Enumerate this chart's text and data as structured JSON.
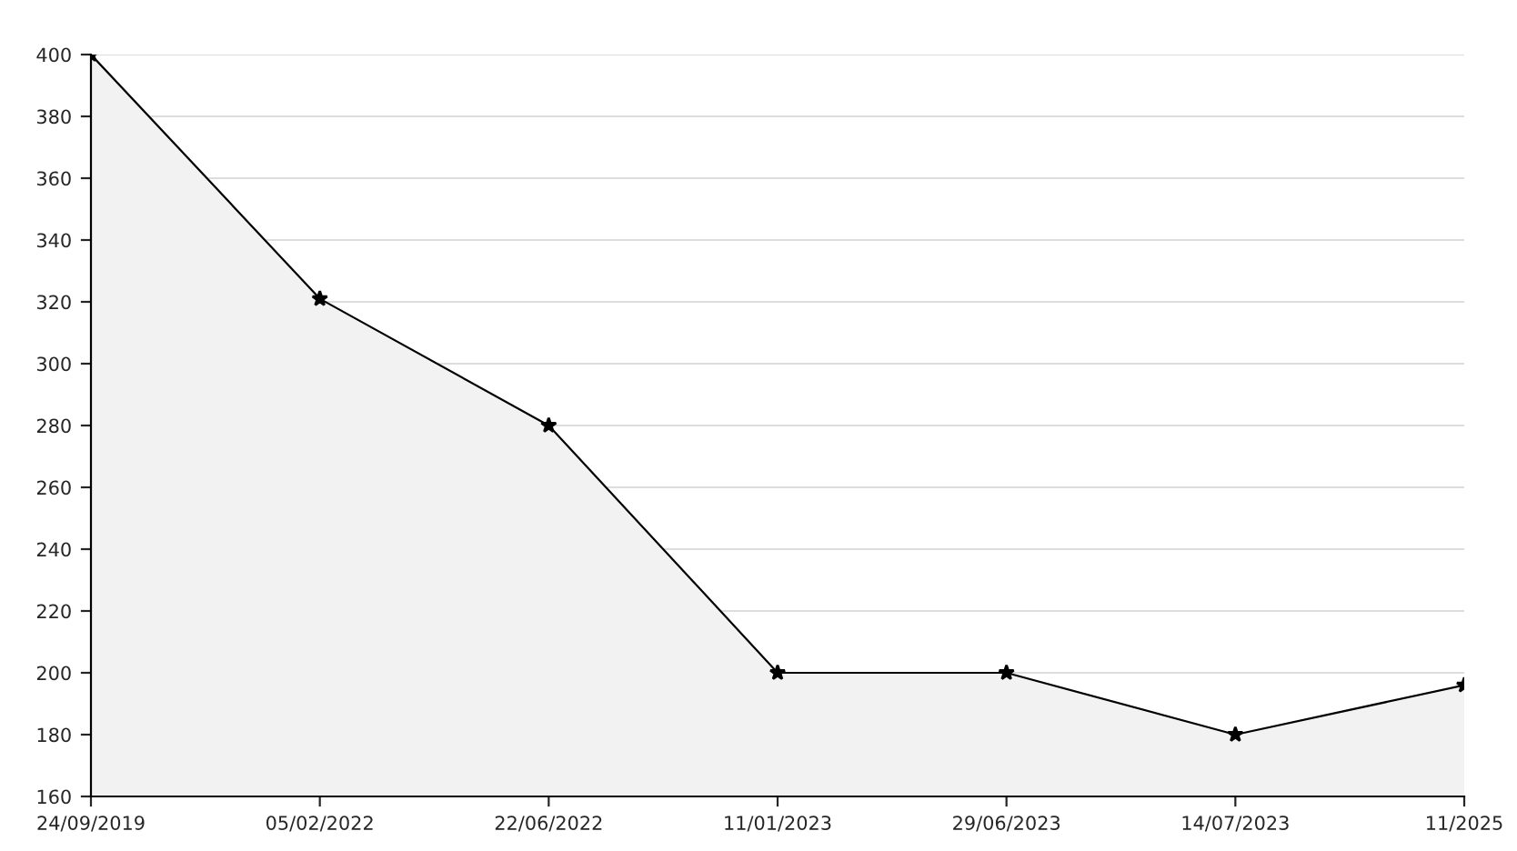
{
  "chart_data": {
    "type": "area",
    "categories": [
      "24/09/2019",
      "05/02/2022",
      "22/06/2022",
      "11/01/2023",
      "29/06/2023",
      "14/07/2023",
      "11/2025"
    ],
    "series": [
      {
        "color": "#000000",
        "values": [
          400,
          321,
          280,
          200,
          200,
          180,
          196
        ]
      }
    ],
    "ylim": [
      160,
      400
    ],
    "yticks": [
      160,
      180,
      200,
      220,
      240,
      260,
      280,
      300,
      320,
      340,
      360,
      380,
      400
    ],
    "grid": "y",
    "marker": "star",
    "line_style": "solid",
    "legend": false
  }
}
